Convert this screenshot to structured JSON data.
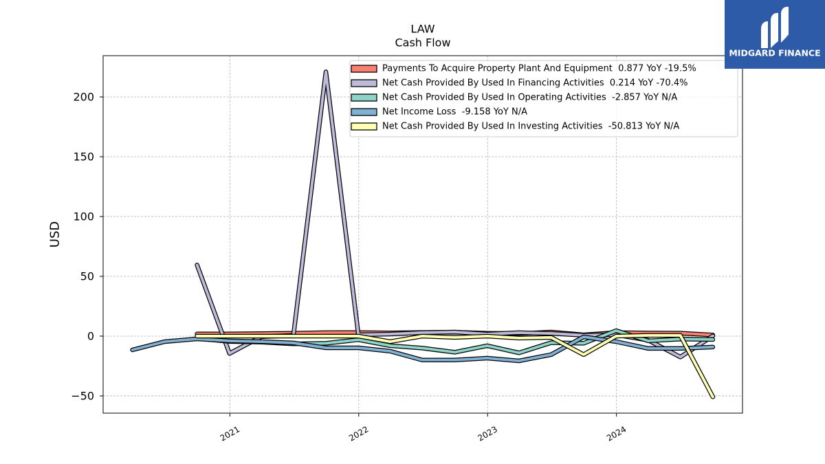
{
  "chart_data": {
    "type": "line",
    "title": "LAW",
    "subtitle": "Cash Flow",
    "ylabel": "USD",
    "xlim": [
      "2020-01-08",
      "2024-12-23"
    ],
    "ylim": [
      -64.4,
      234.5
    ],
    "x_ticks": [
      "2021",
      "2022",
      "2023",
      "2024"
    ],
    "y_ticks": [
      -50,
      0,
      50,
      100,
      150,
      200
    ],
    "y_tick_labels": [
      "−50",
      "0",
      "50",
      "100",
      "150",
      "200"
    ],
    "grid": true,
    "legend_position": "top-right",
    "x": [
      "2020-03-31",
      "2020-06-30",
      "2020-09-30",
      "2020-12-31",
      "2021-03-31",
      "2021-06-30",
      "2021-09-30",
      "2021-12-31",
      "2022-03-31",
      "2022-06-30",
      "2022-09-30",
      "2022-12-31",
      "2023-03-31",
      "2023-06-30",
      "2023-09-30",
      "2023-12-31",
      "2024-03-31",
      "2024-06-30",
      "2024-09-30"
    ],
    "series": [
      {
        "name": "Payments To Acquire Property Plant And Equipment  0.877 YoY -19.5%",
        "color": "#fb8072",
        "values": [
          null,
          null,
          1.8,
          1.9,
          2.1,
          2.4,
          2.9,
          3.0,
          2.7,
          3.1,
          3.3,
          2.4,
          2.1,
          3.4,
          1.09,
          2.9,
          2.6,
          2.5,
          0.877
        ]
      },
      {
        "name": "Net Cash Provided By Used In Financing Activities  0.214 YoY -70.4%",
        "color": "#bebada",
        "values": [
          null,
          null,
          59.5,
          -14.5,
          -0.5,
          0.6,
          221.0,
          1.1,
          1.7,
          2.9,
          3.4,
          1.7,
          2.9,
          2.3,
          0.72,
          1.1,
          -3.4,
          -17.5,
          0.214
        ]
      },
      {
        "name": "Net Cash Provided By Used In Operating Activities  -2.857 YoY N/A",
        "color": "#8dd3c7",
        "values": [
          null,
          null,
          -2.0,
          -4.5,
          -5.0,
          -6.5,
          -6.0,
          -3.0,
          -8.0,
          -10.0,
          -13.5,
          -8.0,
          -14.0,
          -5.5,
          -6.0,
          4.6,
          -4.0,
          -2.5,
          -2.857
        ]
      },
      {
        "name": "Net Income Loss  -9.158 YoY N/A",
        "color": "#80b1d3",
        "values": [
          -11.5,
          -4.6,
          -2.3,
          -4.0,
          -4.6,
          -5.7,
          -9.8,
          -9.8,
          -12.6,
          -20.0,
          -20.0,
          -18.4,
          -20.7,
          -15.5,
          -0.6,
          -4.6,
          -10.3,
          -10.3,
          -9.158
        ]
      },
      {
        "name": "Net Cash Provided By Used In Investing Activities  -50.813 YoY N/A",
        "color": "#ffffb3",
        "values": [
          null,
          null,
          0.0,
          0.0,
          0.0,
          0.0,
          0.0,
          0.0,
          -4.6,
          0.0,
          -1.1,
          0.0,
          -1.7,
          -1.1,
          -15.5,
          0.0,
          0.6,
          0.6,
          -50.813
        ]
      }
    ]
  },
  "logo": {
    "text": "MIDGARD FINANCE",
    "background_color": "#2d5ba8",
    "icon": "midgard-m-icon"
  }
}
